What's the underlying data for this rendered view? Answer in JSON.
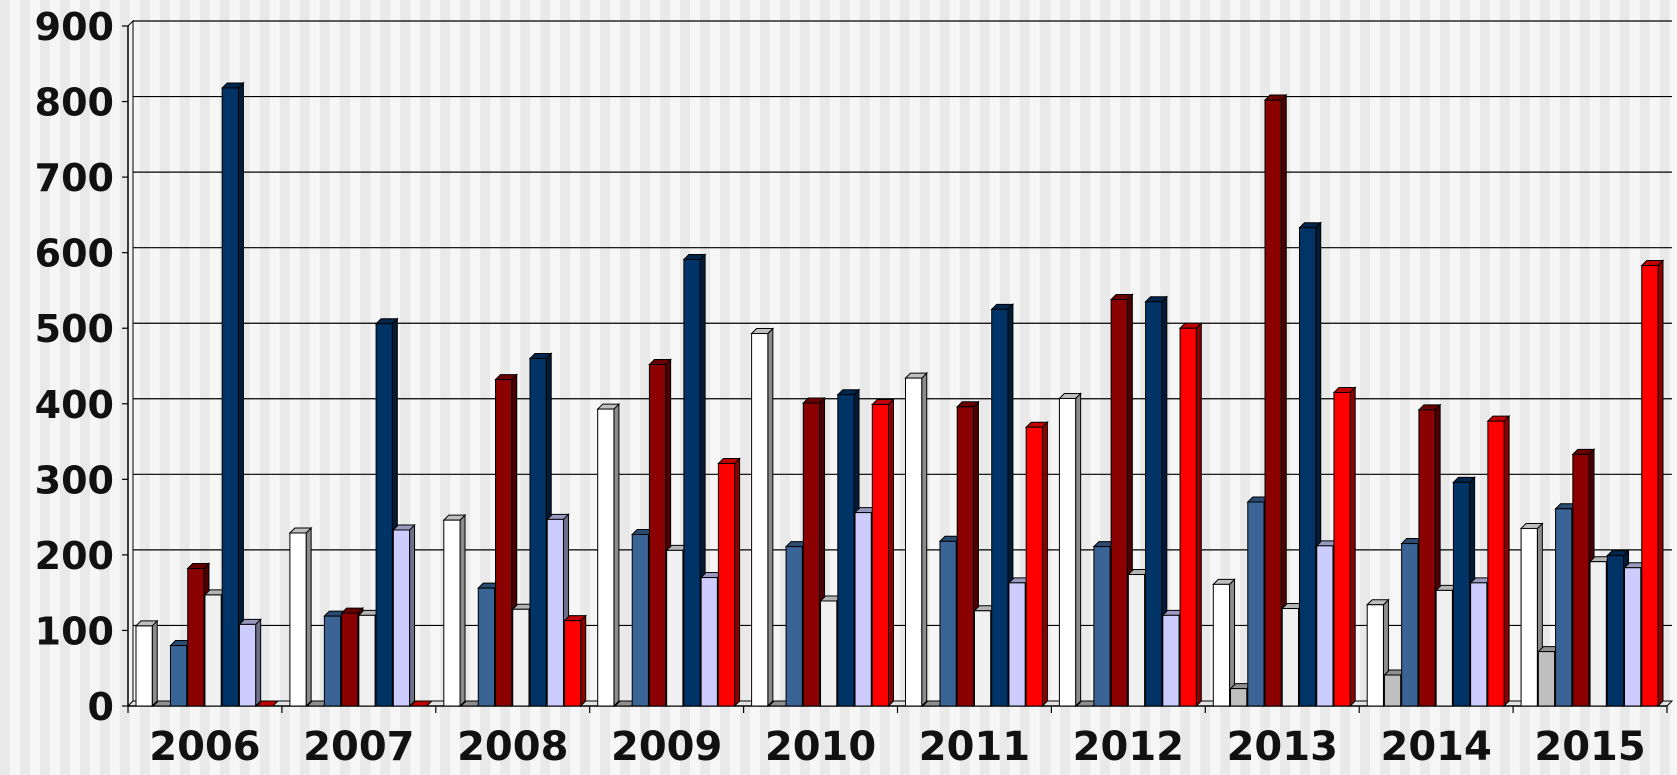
{
  "chart_data": {
    "type": "bar",
    "style": "3d-clustered",
    "title": "",
    "xlabel": "",
    "ylabel": "",
    "ylim": [
      0,
      900
    ],
    "yticks": [
      "0",
      "100",
      "200",
      "300",
      "400",
      "500",
      "600",
      "700",
      "800",
      "900"
    ],
    "grid": "horizontal",
    "legend": "none",
    "categories": [
      "2006",
      "2007",
      "2008",
      "2009",
      "2010",
      "2011",
      "2012",
      "2013",
      "2014",
      "2015"
    ],
    "series": [
      {
        "color": "#ffffff",
        "values": [
          106,
          229,
          246,
          393,
          493,
          434,
          407,
          161,
          134,
          235
        ]
      },
      {
        "color": "#bfbfbf",
        "values": [
          0,
          0,
          0,
          0,
          0,
          0,
          0,
          23,
          41,
          72
        ]
      },
      {
        "color": "#3b6496",
        "values": [
          80,
          119,
          156,
          227,
          211,
          218,
          211,
          270,
          215,
          261
        ]
      },
      {
        "color": "#8b0000",
        "values": [
          182,
          123,
          432,
          452,
          401,
          396,
          538,
          802,
          392,
          333
        ]
      },
      {
        "color": "#f0f0f0",
        "values": [
          147,
          120,
          128,
          206,
          139,
          126,
          174,
          129,
          153,
          191
        ]
      },
      {
        "color": "#003366",
        "values": [
          818,
          506,
          460,
          591,
          412,
          525,
          535,
          633,
          296,
          199
        ]
      },
      {
        "color": "#ccccff",
        "values": [
          108,
          233,
          247,
          170,
          256,
          163,
          120,
          212,
          163,
          183
        ]
      },
      {
        "color": "#ff0000",
        "values": [
          0,
          0,
          113,
          321,
          399,
          369,
          500,
          415,
          377,
          583
        ]
      }
    ]
  }
}
